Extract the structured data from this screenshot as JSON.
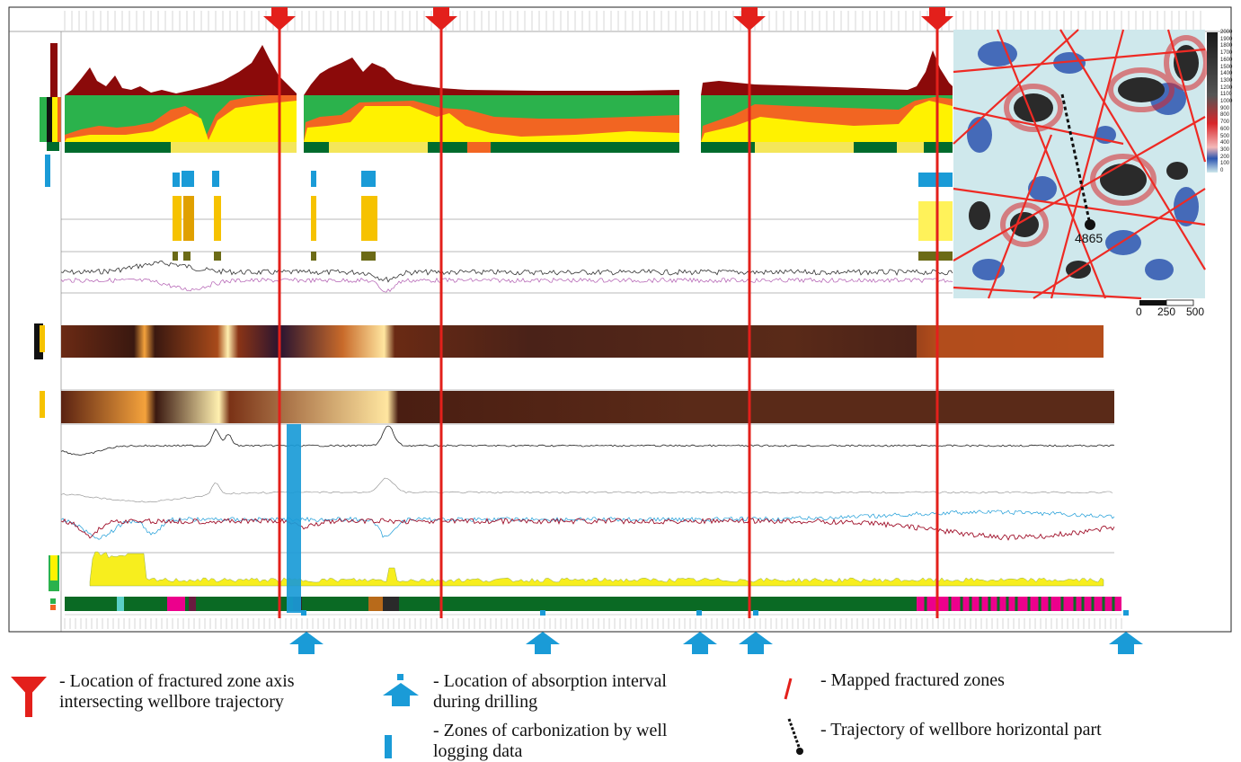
{
  "legend": {
    "fracture_axis": "- Location of fractured zone axis\nintersecting wellbore trajectory",
    "absorption": "- Location of absorption interval\nduring drilling",
    "carbonization": "- Zones of carbonization by well\nlogging data",
    "mapped_zones": "- Mapped fractured zones",
    "trajectory": "- Trajectory of wellbore horizontal part"
  },
  "map": {
    "well_label": "4865",
    "colorbar_ticks": [
      "2000",
      "1900",
      "1800",
      "1700",
      "1600",
      "1500",
      "1400",
      "1300",
      "1200",
      "1100",
      "1000",
      "900",
      "800",
      "700",
      "600",
      "500",
      "400",
      "300",
      "200",
      "100",
      "0"
    ],
    "scale_labels": [
      "0",
      "250",
      "500"
    ]
  },
  "colors": {
    "fracture_line": "#e3201b",
    "absorption_blue": "#1a9bd7",
    "dark_red_fill": "#8b0a0a",
    "green_band": "#2bb24c",
    "yellow_band": "#fff200",
    "orange_band": "#f26522",
    "magenta": "#ec008c"
  },
  "icons": {
    "fracture_axis": "red-down-arrow-icon",
    "absorption": "blue-up-arrow-icon",
    "carbonization": "blue-bar-icon",
    "mapped_zone": "red-line-icon",
    "trajectory": "dashed-trajectory-icon"
  }
}
